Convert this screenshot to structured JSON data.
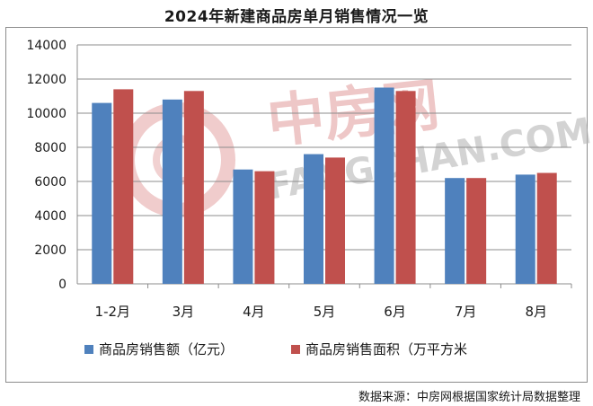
{
  "title": "2024年新建商品房单月销售情况一览",
  "source": "数据来源：中房网根据国家统计局数据整理",
  "watermark": {
    "brand_cn": "中房网",
    "brand_en": "FANGCHAN.COM",
    "color": "#e3a3a3"
  },
  "chart_data": {
    "type": "bar",
    "categories": [
      "1-2月",
      "3月",
      "4月",
      "5月",
      "6月",
      "7月",
      "8月"
    ],
    "series": [
      {
        "name": "商品房销售额（亿元）",
        "color": "#4f81bd",
        "values": [
          10600,
          10800,
          6700,
          7600,
          11500,
          6200,
          6400
        ]
      },
      {
        "name": "商品房销售面积（万平方米",
        "color": "#c0504d",
        "values": [
          11400,
          11300,
          6600,
          7400,
          11300,
          6200,
          6500
        ]
      }
    ],
    "ylim": [
      0,
      14000
    ],
    "yticks": [
      "0",
      "2000",
      "4000",
      "6000",
      "8000",
      "10000",
      "12000",
      "14000"
    ],
    "grid": true,
    "legend": "bottom"
  }
}
